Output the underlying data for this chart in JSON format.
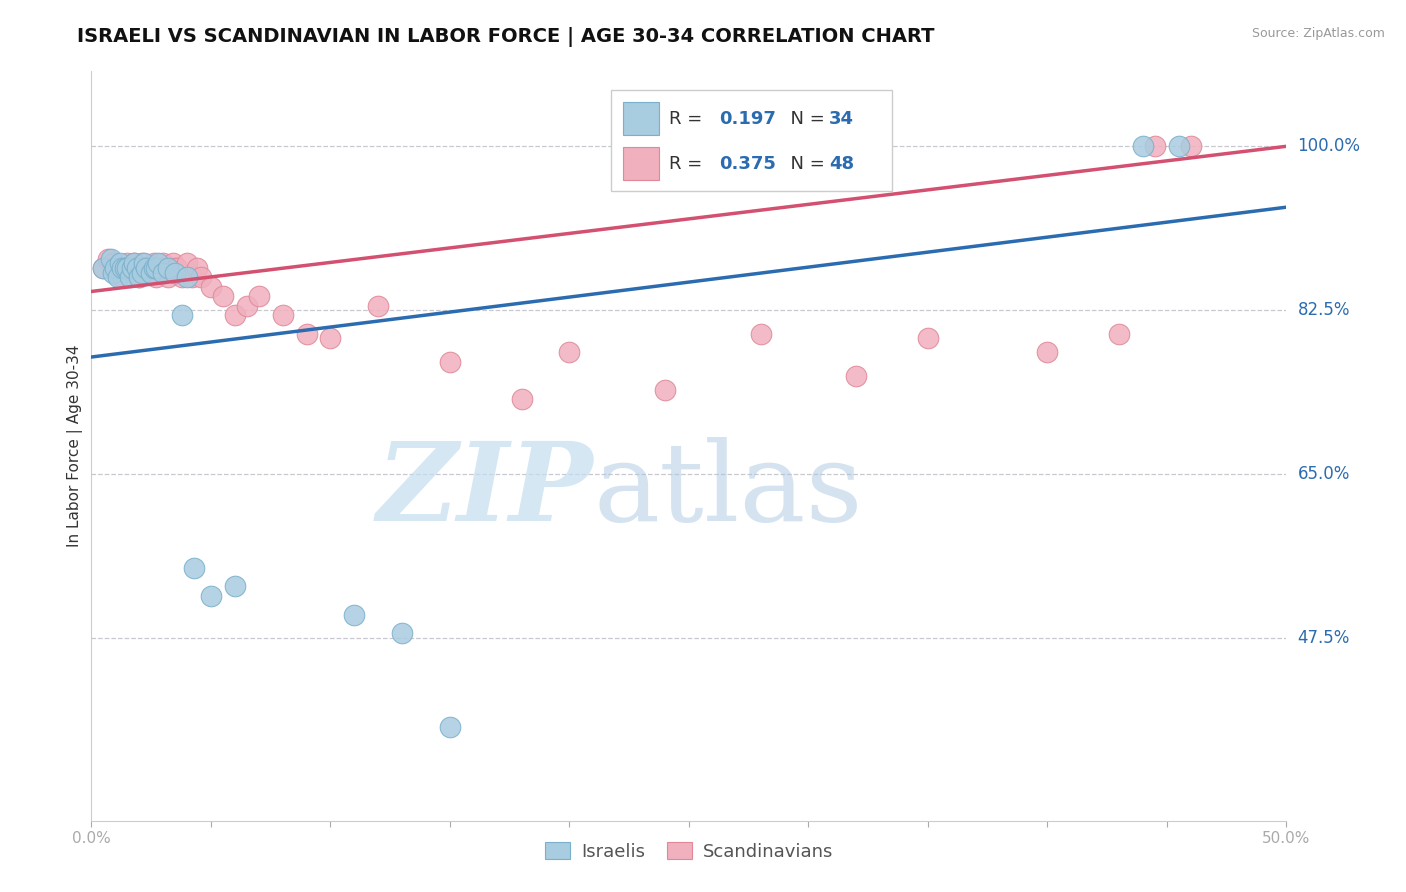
{
  "title": "ISRAELI VS SCANDINAVIAN IN LABOR FORCE | AGE 30-34 CORRELATION CHART",
  "source_text": "Source: ZipAtlas.com",
  "ylabel": "In Labor Force | Age 30-34",
  "xlim": [
    0.0,
    0.5
  ],
  "ylim": [
    0.28,
    1.08
  ],
  "hlines": [
    1.0,
    0.825,
    0.65,
    0.475
  ],
  "hline_labels": [
    "100.0%",
    "82.5%",
    "65.0%",
    "47.5%"
  ],
  "blue_color": "#a8cce0",
  "blue_edge_color": "#7ab0cc",
  "pink_color": "#f0b0be",
  "pink_edge_color": "#e08898",
  "blue_line_color": "#2b6cb0",
  "pink_line_color": "#d45070",
  "legend_R_color": "#2b6cb0",
  "legend_label_blue": "Israelis",
  "legend_label_pink": "Scandinavians",
  "blue_scatter_x": [
    0.005,
    0.008,
    0.009,
    0.01,
    0.011,
    0.012,
    0.013,
    0.014,
    0.015,
    0.016,
    0.017,
    0.018,
    0.019,
    0.02,
    0.021,
    0.022,
    0.023,
    0.025,
    0.026,
    0.027,
    0.028,
    0.03,
    0.032,
    0.035,
    0.038,
    0.04,
    0.043,
    0.05,
    0.06,
    0.11,
    0.13,
    0.15,
    0.44,
    0.455
  ],
  "blue_scatter_y": [
    0.87,
    0.88,
    0.865,
    0.87,
    0.86,
    0.875,
    0.87,
    0.87,
    0.87,
    0.86,
    0.87,
    0.875,
    0.87,
    0.86,
    0.865,
    0.875,
    0.87,
    0.865,
    0.87,
    0.87,
    0.875,
    0.865,
    0.87,
    0.865,
    0.82,
    0.86,
    0.55,
    0.52,
    0.53,
    0.5,
    0.48,
    0.38,
    1.0,
    1.0
  ],
  "pink_scatter_x": [
    0.005,
    0.007,
    0.009,
    0.011,
    0.013,
    0.015,
    0.016,
    0.017,
    0.018,
    0.02,
    0.021,
    0.022,
    0.023,
    0.025,
    0.026,
    0.027,
    0.028,
    0.03,
    0.031,
    0.032,
    0.034,
    0.035,
    0.036,
    0.038,
    0.04,
    0.042,
    0.044,
    0.046,
    0.05,
    0.055,
    0.06,
    0.065,
    0.07,
    0.08,
    0.09,
    0.1,
    0.12,
    0.15,
    0.18,
    0.2,
    0.24,
    0.28,
    0.32,
    0.35,
    0.4,
    0.43,
    0.445,
    0.46
  ],
  "pink_scatter_y": [
    0.87,
    0.88,
    0.875,
    0.87,
    0.86,
    0.875,
    0.87,
    0.87,
    0.875,
    0.86,
    0.875,
    0.87,
    0.865,
    0.87,
    0.875,
    0.86,
    0.87,
    0.875,
    0.87,
    0.86,
    0.875,
    0.87,
    0.87,
    0.86,
    0.875,
    0.86,
    0.87,
    0.86,
    0.85,
    0.84,
    0.82,
    0.83,
    0.84,
    0.82,
    0.8,
    0.795,
    0.83,
    0.77,
    0.73,
    0.78,
    0.74,
    0.8,
    0.755,
    0.795,
    0.78,
    0.8,
    1.0,
    1.0
  ],
  "blue_trend": [
    0.0,
    0.5,
    0.775,
    0.935
  ],
  "pink_trend": [
    0.0,
    0.5,
    0.845,
    1.0
  ],
  "watermark_zip": "ZIP",
  "watermark_atlas": "atlas",
  "background_color": "#ffffff",
  "grid_color": "#c8c8d0",
  "title_fontsize": 14,
  "axis_label_fontsize": 11,
  "tick_fontsize": 11,
  "hline_label_fontsize": 12
}
